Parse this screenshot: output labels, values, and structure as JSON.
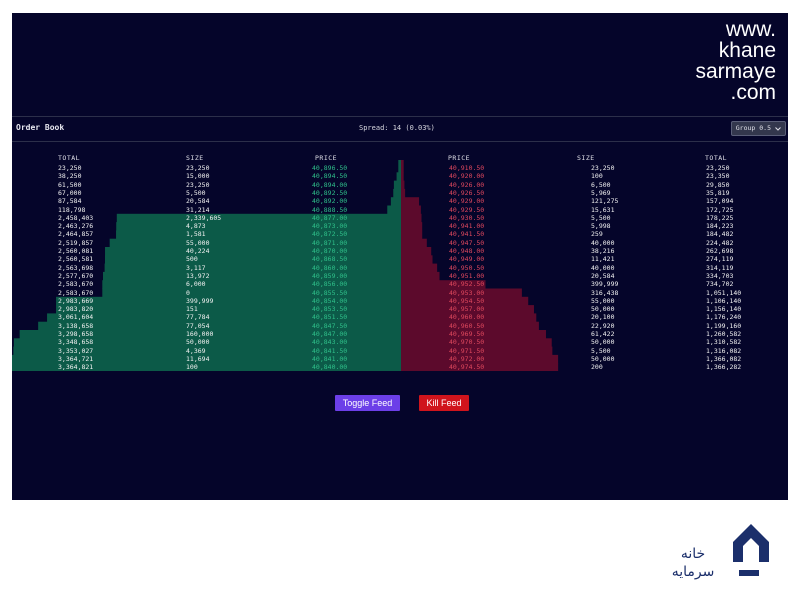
{
  "watermark": {
    "lines": [
      "www.",
      "khane",
      "sarmaye",
      ".com"
    ]
  },
  "header": {
    "title": "Order Book",
    "spread_label": "Spread: 14 (0.03%)",
    "group_label": "Group 0.5",
    "group_icon": "chevron-down-icon"
  },
  "bids": {
    "headers": {
      "total": "TOTAL",
      "size": "SIZE",
      "price": "PRICE"
    },
    "rows": [
      {
        "total": "23,250",
        "size": "23,250",
        "price": "40,896.50"
      },
      {
        "total": "38,250",
        "size": "15,000",
        "price": "40,894.50"
      },
      {
        "total": "61,500",
        "size": "23,250",
        "price": "40,894.00"
      },
      {
        "total": "67,000",
        "size": "5,500",
        "price": "40,892.50"
      },
      {
        "total": "87,584",
        "size": "20,584",
        "price": "40,892.00"
      },
      {
        "total": "118,798",
        "size": "31,214",
        "price": "40,888.50"
      },
      {
        "total": "2,458,403",
        "size": "2,339,605",
        "price": "40,877.00"
      },
      {
        "total": "2,463,276",
        "size": "4,873",
        "price": "40,873.00"
      },
      {
        "total": "2,464,857",
        "size": "1,581",
        "price": "40,872.50"
      },
      {
        "total": "2,519,857",
        "size": "55,000",
        "price": "40,871.00"
      },
      {
        "total": "2,560,081",
        "size": "40,224",
        "price": "40,870.00"
      },
      {
        "total": "2,560,581",
        "size": "500",
        "price": "40,868.50"
      },
      {
        "total": "2,563,698",
        "size": "3,117",
        "price": "40,860.00"
      },
      {
        "total": "2,577,670",
        "size": "13,972",
        "price": "40,859.00"
      },
      {
        "total": "2,583,670",
        "size": "6,000",
        "price": "40,856.00"
      },
      {
        "total": "2,583,670",
        "size": "0",
        "price": "40,855.50"
      },
      {
        "total": "2,983,669",
        "size": "399,999",
        "price": "40,854.00"
      },
      {
        "total": "2,983,820",
        "size": "151",
        "price": "40,853.50"
      },
      {
        "total": "3,061,604",
        "size": "77,784",
        "price": "40,851.50"
      },
      {
        "total": "3,138,658",
        "size": "77,054",
        "price": "40,847.50"
      },
      {
        "total": "3,298,658",
        "size": "160,000",
        "price": "40,847.00"
      },
      {
        "total": "3,348,658",
        "size": "50,000",
        "price": "40,843.00"
      },
      {
        "total": "3,353,027",
        "size": "4,369",
        "price": "40,841.50"
      },
      {
        "total": "3,364,721",
        "size": "11,694",
        "price": "40,841.00"
      },
      {
        "total": "3,364,821",
        "size": "100",
        "price": "40,840.00"
      }
    ]
  },
  "asks": {
    "headers": {
      "price": "PRICE",
      "size": "SIZE",
      "total": "TOTAL"
    },
    "rows": [
      {
        "price": "40,910.50",
        "size": "23,250",
        "total": "23,250"
      },
      {
        "price": "40,920.00",
        "size": "100",
        "total": "23,350"
      },
      {
        "price": "40,926.00",
        "size": "6,500",
        "total": "29,850"
      },
      {
        "price": "40,926.50",
        "size": "5,969",
        "total": "35,819"
      },
      {
        "price": "40,929.00",
        "size": "121,275",
        "total": "157,094"
      },
      {
        "price": "40,929.50",
        "size": "15,631",
        "total": "172,725"
      },
      {
        "price": "40,930.50",
        "size": "5,500",
        "total": "178,225"
      },
      {
        "price": "40,941.00",
        "size": "5,998",
        "total": "184,223"
      },
      {
        "price": "40,941.50",
        "size": "259",
        "total": "184,482"
      },
      {
        "price": "40,947.50",
        "size": "40,000",
        "total": "224,482"
      },
      {
        "price": "40,948.00",
        "size": "38,216",
        "total": "262,698"
      },
      {
        "price": "40,949.00",
        "size": "11,421",
        "total": "274,119"
      },
      {
        "price": "40,950.50",
        "size": "40,000",
        "total": "314,119"
      },
      {
        "price": "40,951.00",
        "size": "20,584",
        "total": "334,703"
      },
      {
        "price": "40,952.50",
        "size": "399,999",
        "total": "734,702"
      },
      {
        "price": "40,953.00",
        "size": "316,438",
        "total": "1,051,140"
      },
      {
        "price": "40,954.50",
        "size": "55,000",
        "total": "1,106,140"
      },
      {
        "price": "40,957.00",
        "size": "50,000",
        "total": "1,156,140"
      },
      {
        "price": "40,960.00",
        "size": "20,100",
        "total": "1,176,240"
      },
      {
        "price": "40,960.50",
        "size": "22,920",
        "total": "1,199,160"
      },
      {
        "price": "40,969.50",
        "size": "61,422",
        "total": "1,260,582"
      },
      {
        "price": "40,970.50",
        "size": "50,000",
        "total": "1,310,582"
      },
      {
        "price": "40,971.50",
        "size": "5,500",
        "total": "1,316,082"
      },
      {
        "price": "40,972.00",
        "size": "50,000",
        "total": "1,366,082"
      },
      {
        "price": "40,974.50",
        "size": "200",
        "total": "1,366,282"
      }
    ]
  },
  "buttons": {
    "toggle": "Toggle Feed",
    "kill": "Kill Feed"
  },
  "colors": {
    "bid_depth": "#0c5a48",
    "ask_depth": "#5c0a2c",
    "bid_price": "#2fc08a",
    "ask_price": "#e0485e",
    "toggle_bg": "#6c3fe8",
    "kill_bg": "#d0141c"
  },
  "brand": {
    "icon": "house-logo-icon",
    "text_line1": "خانه",
    "text_line2": "سرمایه"
  }
}
